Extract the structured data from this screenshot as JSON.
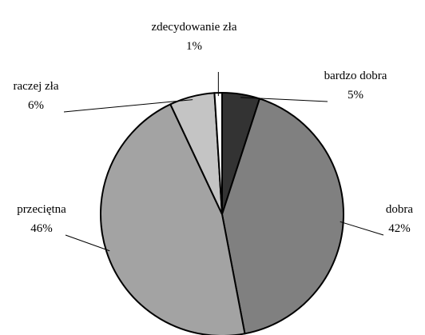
{
  "chart_data": {
    "type": "pie",
    "categories": [
      "bardzo dobra",
      "dobra",
      "przeciętna",
      "raczej zła",
      "zdecydowanie zła"
    ],
    "values": [
      5,
      42,
      46,
      6,
      1
    ],
    "value_labels": [
      "5%",
      "42%",
      "46%",
      "6%",
      "1%"
    ],
    "colors": [
      "#333333",
      "#808080",
      "#a3a3a3",
      "#c4c4c4",
      "#ffffff"
    ]
  }
}
